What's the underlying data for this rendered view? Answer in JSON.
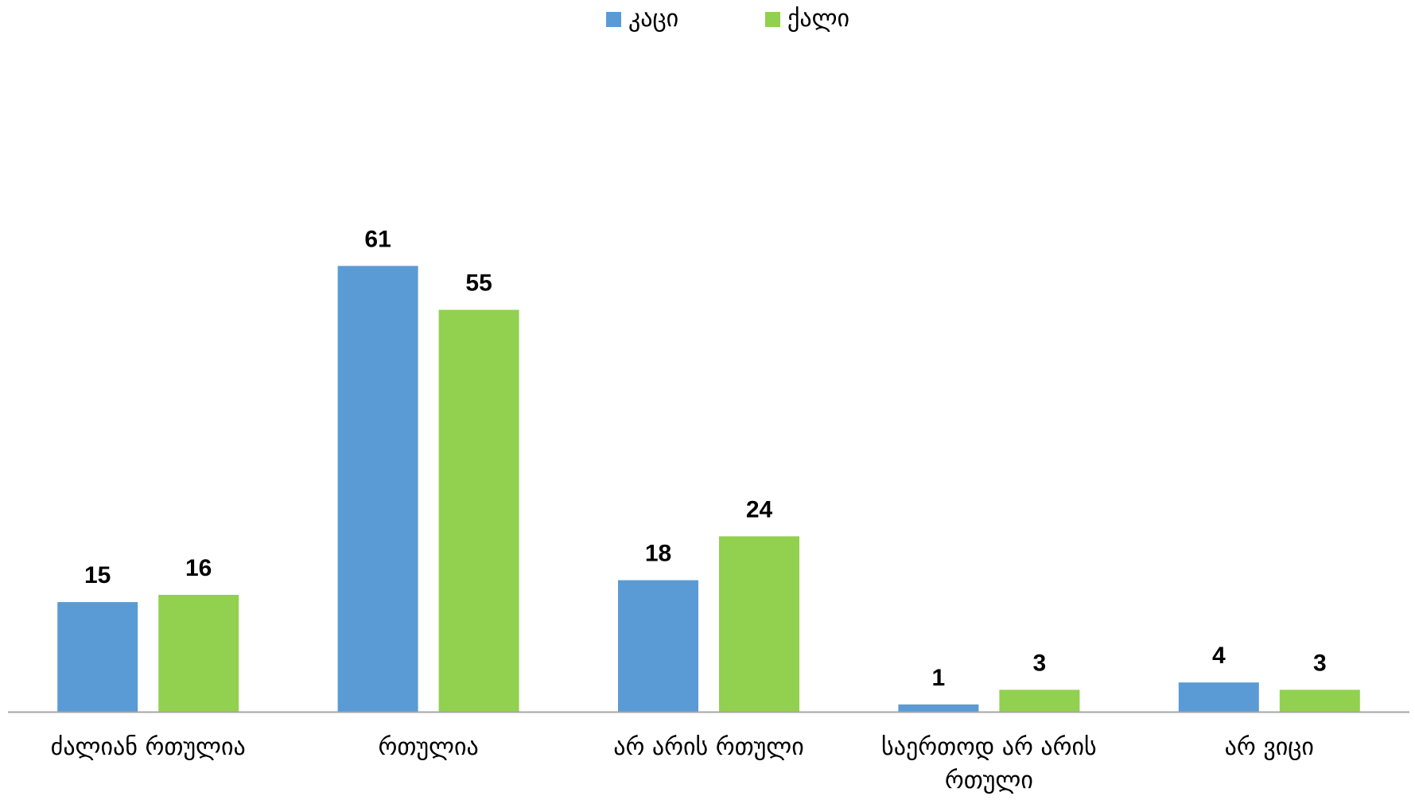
{
  "chart_data": {
    "type": "bar",
    "categories": [
      "ძალიან რთულია",
      "რთულია",
      "არ არის რთული",
      "საერთოდ არ არის რთული",
      "არ ვიცი"
    ],
    "series": [
      {
        "name": "კაცი",
        "values": [
          15,
          61,
          18,
          1,
          4
        ],
        "color": "#5B9BD5"
      },
      {
        "name": "ქალი",
        "values": [
          16,
          55,
          24,
          3,
          3
        ],
        "color": "#92D050"
      }
    ],
    "title": "",
    "xlabel": "",
    "ylabel": "",
    "legend": "top-center",
    "grid": false,
    "data_labels": true,
    "axis_color": "#A6A6A6"
  }
}
